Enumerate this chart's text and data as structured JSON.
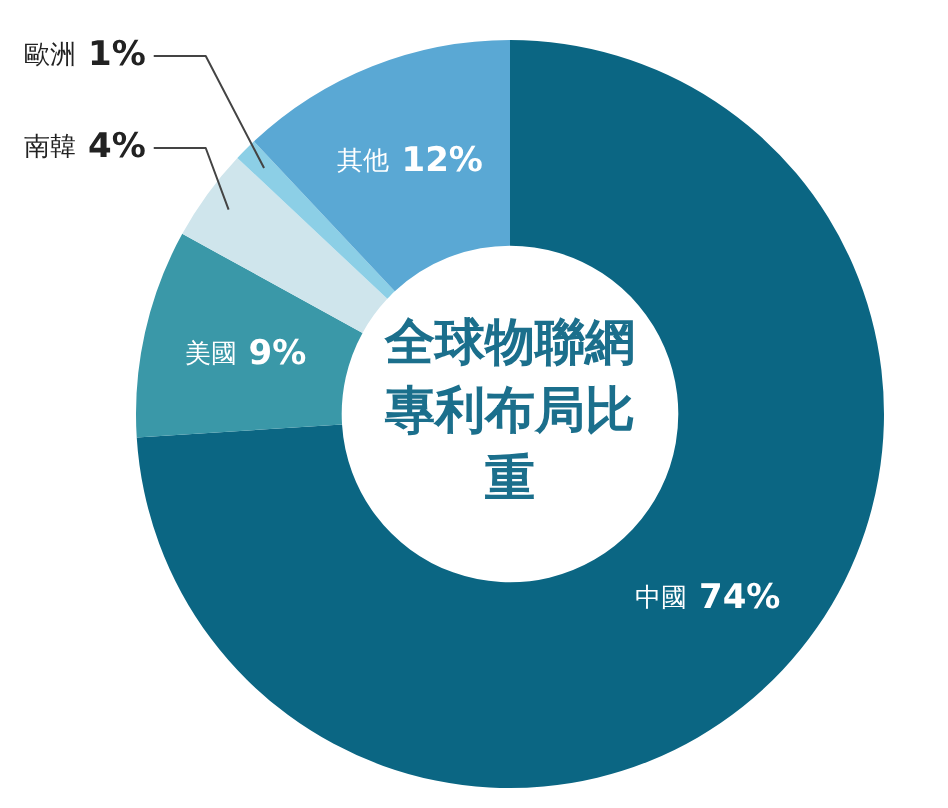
{
  "chart_data": {
    "type": "donut",
    "title": "全球物聯網專利布局比重",
    "categories": [
      "中國",
      "美國",
      "南韓",
      "歐洲",
      "其他"
    ],
    "values": [
      74,
      9,
      4,
      1,
      12
    ],
    "value_labels": [
      "74%",
      "9%",
      "4%",
      "1%",
      "12%"
    ],
    "colors": [
      "#0b6683",
      "#3a98a8",
      "#cfe5ec",
      "#8ccfe6",
      "#5aa8d4"
    ],
    "legend": false
  }
}
